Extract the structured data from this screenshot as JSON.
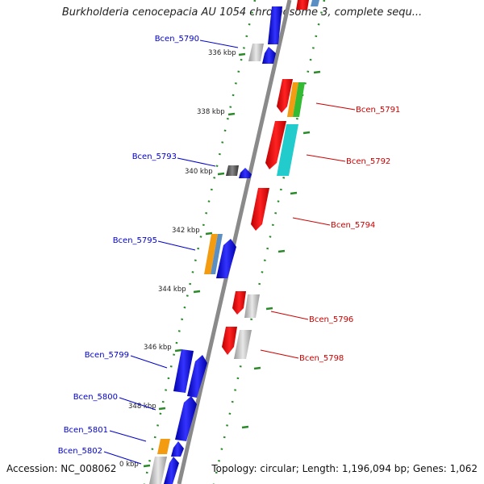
{
  "title": "Burkholderia cenocepacia AU 1054 chromosome 3, complete sequ...",
  "accession": "Accession: NC_008062",
  "summary": "Topology: circular; Length: 1,196,094 bp; Genes: 1,062",
  "kbp_labels": [
    "336 kbp",
    "338 kbp",
    "340 kbp",
    "342 kbp",
    "344 kbp",
    "346 kbp",
    "348 kbp",
    "0 kbp"
  ],
  "gene_labels_left": [
    "Bcen_5790",
    "Bcen_5793",
    "Bcen_5795",
    "Bcen_5799",
    "Bcen_5800",
    "Bcen_5801",
    "Bcen_5802"
  ],
  "gene_labels_right": [
    "Bcen_5791",
    "Bcen_5792",
    "Bcen_5794",
    "Bcen_5796",
    "Bcen_5798"
  ],
  "colors": {
    "forward_label": "#0000cc",
    "reverse_label": "#cc0000",
    "tick": "#2a8a2a",
    "backbone": "#888888",
    "blue": "#0000ee",
    "red": "#ee0000",
    "gray": "#bbbbbb",
    "orange": "#f39c12",
    "cyan": "#22cccc",
    "green": "#33bb33",
    "steel": "#5b8fc4"
  }
}
